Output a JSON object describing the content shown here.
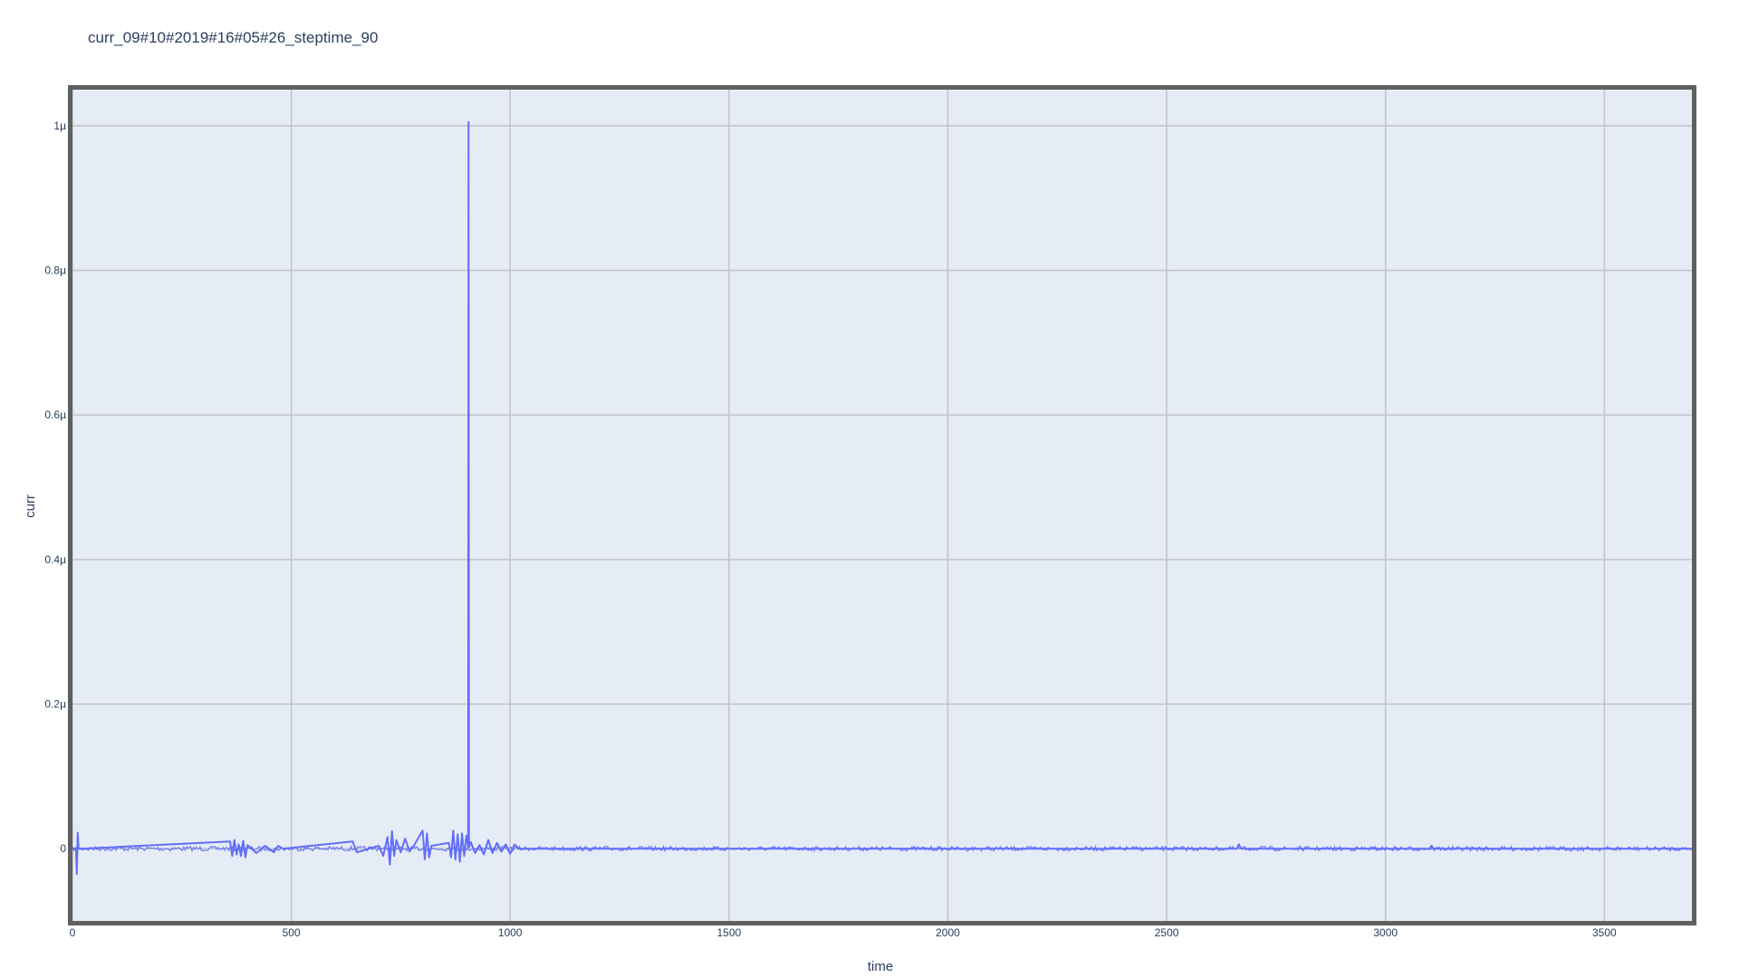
{
  "chart_data": {
    "type": "line",
    "title": "curr_09#10#2019#16#05#26_steptime_90",
    "xlabel": "time",
    "ylabel": "curr",
    "xlim": [
      0,
      3700
    ],
    "ylim": [
      -1e-07,
      1.05e-06
    ],
    "x_ticks": [
      0,
      500,
      1000,
      1500,
      2000,
      2500,
      3000,
      3500
    ],
    "x_tick_labels": [
      "0",
      "500",
      "1000",
      "1500",
      "2000",
      "2500",
      "3000",
      "3500"
    ],
    "y_ticks": [
      0,
      2e-07,
      4e-07,
      6e-07,
      8e-07,
      1e-06
    ],
    "y_tick_labels": [
      "0",
      "0.2µ",
      "0.4µ",
      "0.6µ",
      "0.8µ",
      "1µ"
    ],
    "grid": true,
    "legend": "none",
    "colors": {
      "line": "#636efa",
      "plot_bg": "#e5ecf6",
      "grid": "#bfc3c7",
      "frame": "#606060",
      "text": "#2a3f5f"
    },
    "series": [
      {
        "x": [
          0,
          8,
          10,
          12,
          14,
          20,
          360,
          365,
          370,
          375,
          380,
          385,
          390,
          395,
          400,
          420,
          440,
          460,
          470,
          480,
          640,
          650,
          700,
          710,
          720,
          725,
          730,
          735,
          740,
          750,
          760,
          770,
          780,
          800,
          805,
          810,
          815,
          820,
          860,
          865,
          870,
          875,
          880,
          885,
          890,
          895,
          900,
          904,
          905,
          906,
          910,
          920,
          930,
          940,
          950,
          960,
          970,
          980,
          990,
          1000,
          1010,
          1020,
          2660,
          2665,
          2670,
          3100,
          3105,
          3110,
          3700
        ],
        "y": [
          0,
          0,
          -3.5e-08,
          2.2e-08,
          0,
          0,
          1e-08,
          -1e-08,
          1.2e-08,
          -8e-09,
          6e-09,
          -1e-08,
          1.1e-08,
          -1.2e-08,
          5e-09,
          -6e-09,
          4e-09,
          -5e-09,
          4e-09,
          0,
          1e-08,
          -5e-09,
          4e-09,
          -1e-08,
          1.6e-08,
          -2.2e-08,
          2.4e-08,
          -1e-08,
          1.2e-08,
          -5e-09,
          1.4e-08,
          -4e-09,
          4e-09,
          2.5e-08,
          -1.5e-08,
          2.1e-08,
          -1.2e-08,
          4e-09,
          8e-09,
          -1.2e-08,
          2.5e-08,
          -1.5e-08,
          2e-08,
          -1.8e-08,
          2.1e-08,
          -1e-08,
          1.8e-08,
          2e-09,
          1.005e-06,
          2e-09,
          9e-09,
          -6e-09,
          5e-09,
          -8e-09,
          1.2e-08,
          -6e-09,
          8e-09,
          -4e-09,
          6e-09,
          -7e-09,
          6e-09,
          0,
          0,
          6e-09,
          0,
          0,
          4e-09,
          0,
          0
        ]
      }
    ]
  }
}
